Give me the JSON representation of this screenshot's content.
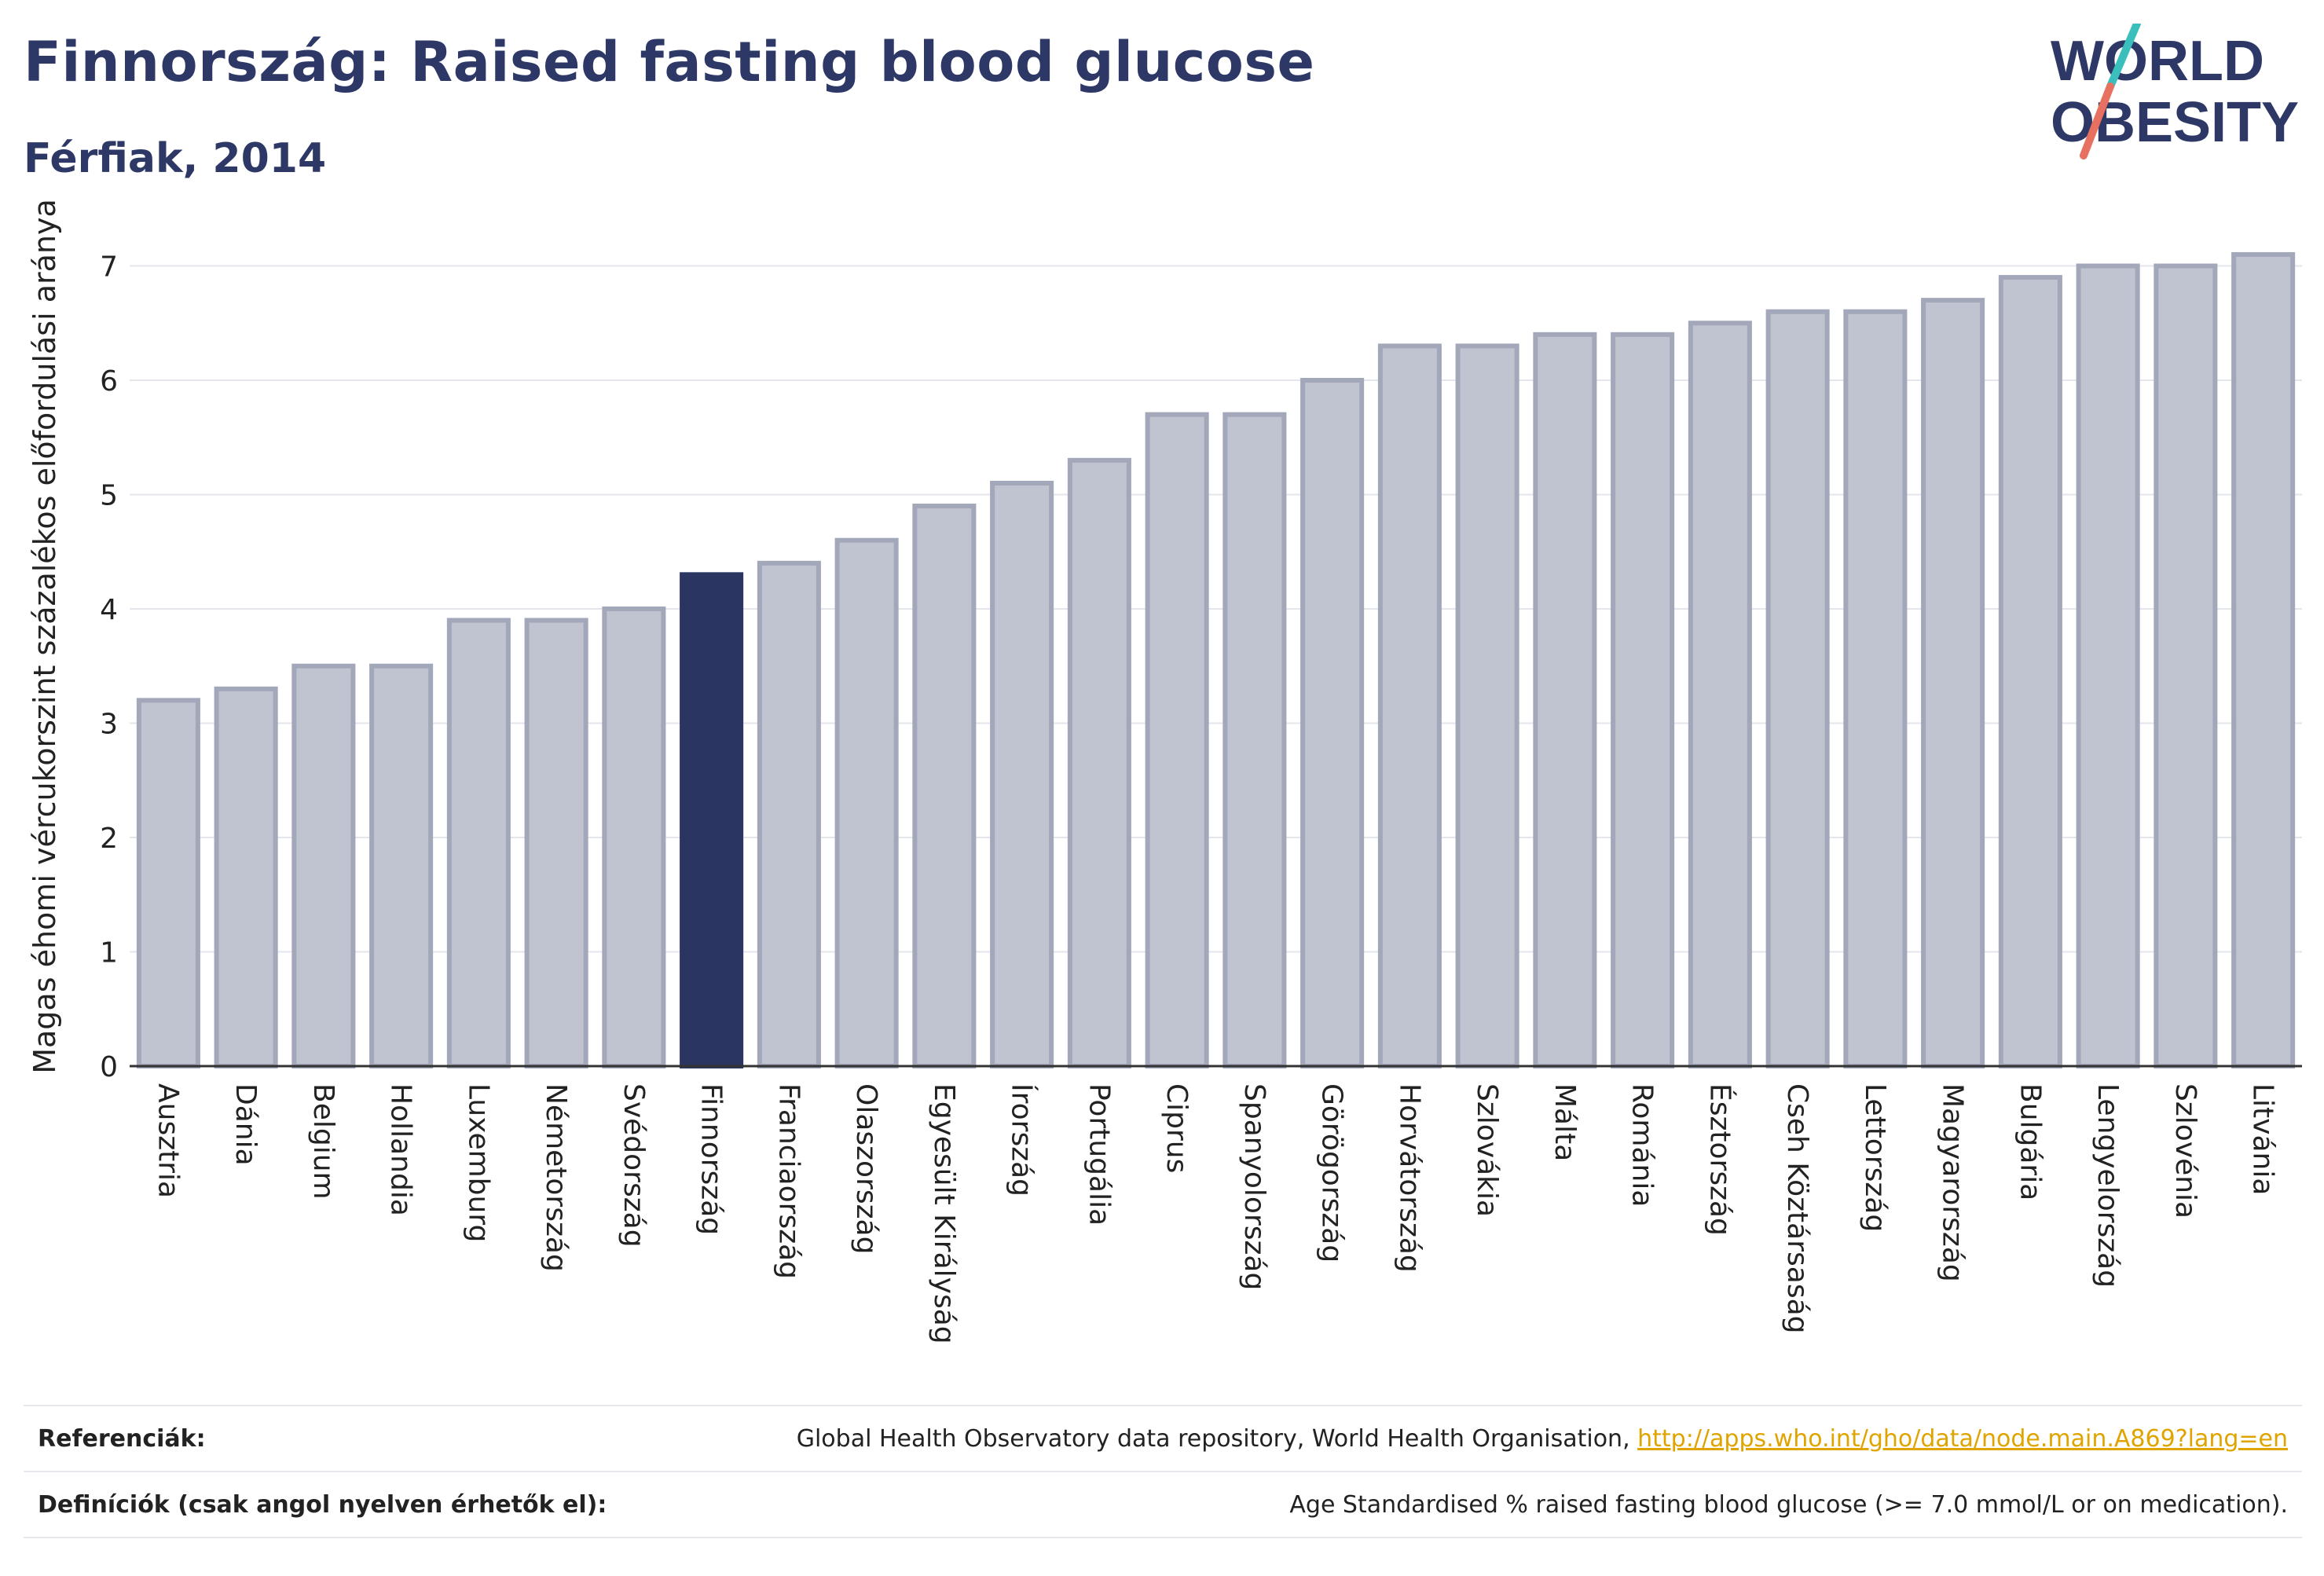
{
  "header": {
    "title": "Finnország: Raised fasting blood glucose",
    "subtitle": "Férfiak, 2014"
  },
  "logo": {
    "line1": "WORLD",
    "line2": "OBESITY"
  },
  "colors": {
    "bar_fill": "#c0c3d0",
    "bar_stroke": "#a2a7ba",
    "highlight": "#2a3561",
    "text": "#2d3866",
    "grid": "#e4e6ec",
    "logo_teal": "#3bbfbd",
    "logo_coral": "#e87060",
    "link": "#e0a400"
  },
  "chart_data": {
    "type": "bar",
    "ylabel": "Magas éhomi vércukorszint százalékos előfordulási aránya",
    "ylim": [
      0,
      7.2
    ],
    "yticks": [
      0,
      1,
      2,
      3,
      4,
      5,
      6,
      7
    ],
    "grid": true,
    "highlight": "Finnország",
    "categories": [
      "Ausztria",
      "Dánia",
      "Belgium",
      "Hollandia",
      "Luxemburg",
      "Németország",
      "Svédország",
      "Finnország",
      "Franciaország",
      "Olaszország",
      "Egyesült Királyság",
      "Írország",
      "Portugália",
      "Ciprus",
      "Spanyolország",
      "Görögország",
      "Horvátország",
      "Szlovákia",
      "Málta",
      "Románia",
      "Észtország",
      "Cseh Köztársaság",
      "Lettország",
      "Magyarország",
      "Bulgária",
      "Lengyelország",
      "Szlovénia",
      "Litvánia"
    ],
    "values": [
      3.2,
      3.3,
      3.5,
      3.5,
      3.9,
      3.9,
      4.0,
      4.3,
      4.4,
      4.6,
      4.9,
      5.1,
      5.3,
      5.7,
      5.7,
      6.0,
      6.3,
      6.3,
      6.4,
      6.4,
      6.5,
      6.6,
      6.6,
      6.7,
      6.9,
      7.0,
      7.0,
      7.1
    ]
  },
  "references": {
    "ref_label": "Referenciák:",
    "ref_text": "Global Health Observatory data repository, World Health Organisation, ",
    "ref_link": "http://apps.who.int/gho/data/node.main.A869?lang=en",
    "def_label": "Definíciók (csak angol nyelven érhetők el):",
    "def_text": "Age Standardised % raised fasting blood glucose (>= 7.0 mmol/L or on medication)."
  }
}
